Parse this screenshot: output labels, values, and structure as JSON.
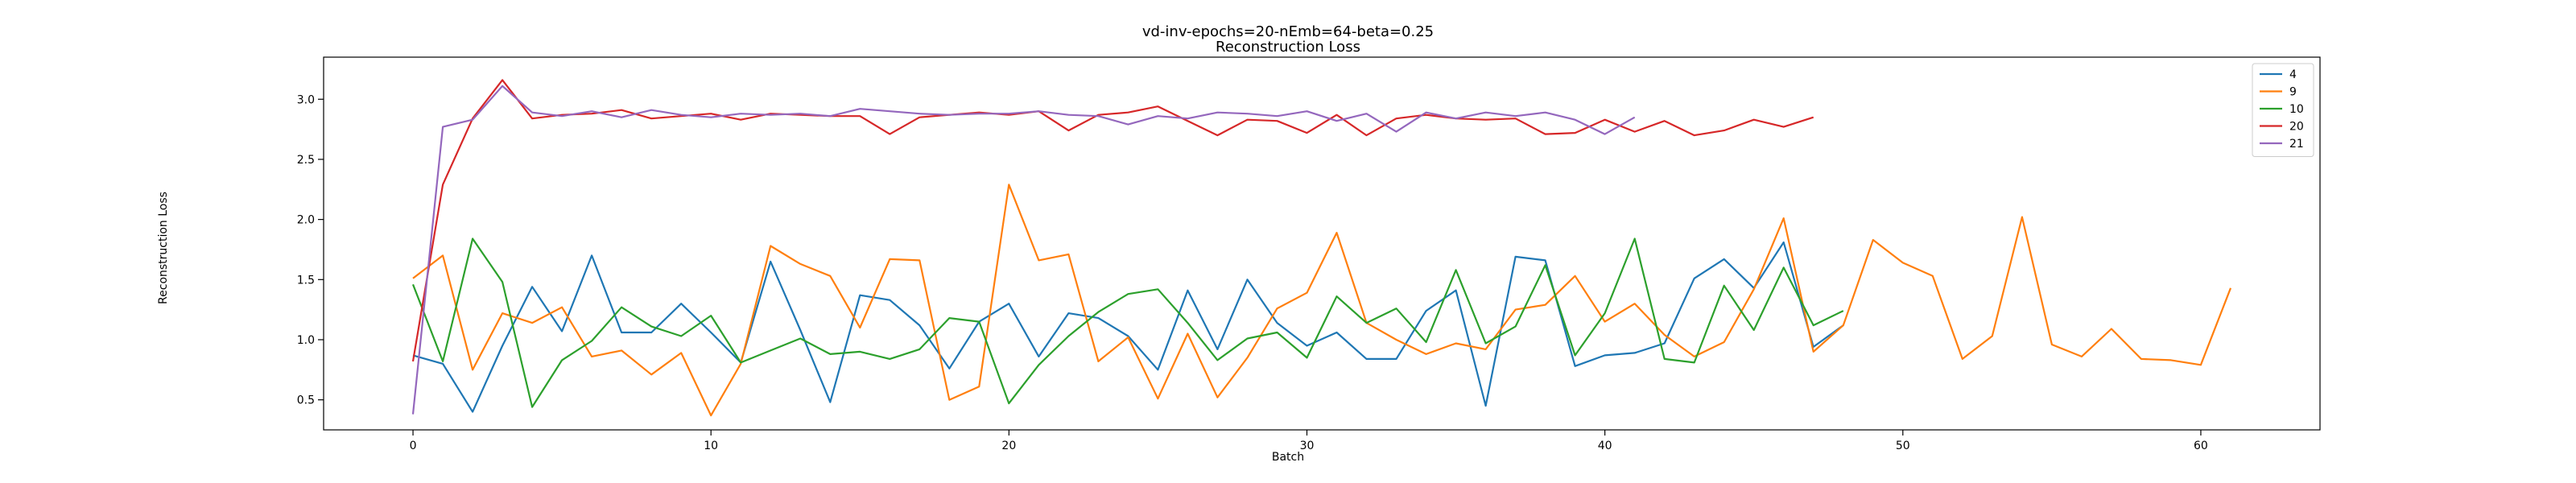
{
  "chart_data": {
    "type": "line",
    "title": "vd-inv-epochs=20-nEmb=64-beta=0.25",
    "subtitle": "Reconstruction Loss",
    "xlabel": "Batch",
    "ylabel": "Reconstruction Loss",
    "xlim": [
      -3,
      64
    ],
    "ylim": [
      0.25,
      3.35
    ],
    "xticks": [
      0,
      10,
      20,
      30,
      40,
      50,
      60
    ],
    "yticks": [
      0.5,
      1.0,
      1.5,
      2.0,
      2.5,
      3.0
    ],
    "xtick_labels": [
      "0",
      "10",
      "20",
      "30",
      "40",
      "50",
      "60"
    ],
    "ytick_labels": [
      "0.5",
      "1.0",
      "1.5",
      "2.0",
      "2.5",
      "3.0"
    ],
    "grid": false,
    "legend_position": "top-right",
    "series": [
      {
        "name": "4",
        "color": "#1f77b4",
        "values": [
          0.87,
          0.8,
          0.4,
          0.95,
          1.44,
          1.07,
          1.7,
          1.06,
          1.06,
          1.3,
          1.06,
          0.81,
          1.65,
          1.08,
          0.48,
          1.37,
          1.33,
          1.12,
          0.76,
          1.15,
          1.3,
          0.86,
          1.22,
          1.18,
          1.03,
          0.75,
          1.41,
          0.92,
          1.5,
          1.14,
          0.95,
          1.06,
          0.84,
          0.84,
          1.24,
          1.41,
          0.45,
          1.69,
          1.66,
          0.78,
          0.87,
          0.89,
          0.97,
          1.51,
          1.67,
          1.43,
          1.81,
          0.94,
          1.12
        ]
      },
      {
        "name": "9",
        "color": "#ff7f0e",
        "values": [
          1.51,
          1.7,
          0.75,
          1.22,
          1.14,
          1.27,
          0.86,
          0.91,
          0.71,
          0.89,
          0.37,
          0.8,
          1.78,
          1.63,
          1.53,
          1.1,
          1.67,
          1.66,
          0.5,
          0.61,
          2.29,
          1.66,
          1.71,
          0.82,
          1.02,
          0.51,
          1.05,
          0.52,
          0.85,
          1.26,
          1.39,
          1.89,
          1.14,
          1.0,
          0.88,
          0.97,
          0.92,
          1.25,
          1.29,
          1.53,
          1.15,
          1.3,
          1.04,
          0.86,
          0.98,
          1.42,
          2.01,
          0.9,
          1.12,
          1.83,
          1.64,
          1.53,
          0.84,
          1.03,
          2.02,
          0.96,
          0.86,
          1.09,
          0.84,
          0.83,
          0.79,
          1.43
        ]
      },
      {
        "name": "10",
        "color": "#2ca02c",
        "values": [
          1.46,
          0.82,
          1.84,
          1.48,
          0.44,
          0.83,
          0.99,
          1.27,
          1.11,
          1.03,
          1.2,
          0.81,
          0.91,
          1.01,
          0.88,
          0.9,
          0.84,
          0.92,
          1.18,
          1.15,
          0.47,
          0.79,
          1.03,
          1.23,
          1.38,
          1.42,
          1.14,
          0.83,
          1.01,
          1.06,
          0.85,
          1.36,
          1.14,
          1.26,
          0.98,
          1.58,
          0.97,
          1.11,
          1.62,
          0.87,
          1.22,
          1.84,
          0.84,
          0.81,
          1.45,
          1.08,
          1.6,
          1.12,
          1.24
        ]
      },
      {
        "name": "20",
        "color": "#d62728",
        "values": [
          0.82,
          2.29,
          2.84,
          3.16,
          2.84,
          2.87,
          2.88,
          2.91,
          2.84,
          2.86,
          2.88,
          2.83,
          2.88,
          2.87,
          2.86,
          2.86,
          2.71,
          2.85,
          2.87,
          2.89,
          2.87,
          2.9,
          2.74,
          2.87,
          2.89,
          2.94,
          2.82,
          2.7,
          2.83,
          2.82,
          2.72,
          2.87,
          2.7,
          2.84,
          2.87,
          2.84,
          2.83,
          2.84,
          2.71,
          2.72,
          2.83,
          2.73,
          2.82,
          2.7,
          2.74,
          2.83,
          2.77,
          2.85
        ]
      },
      {
        "name": "21",
        "color": "#9467bd",
        "values": [
          0.38,
          2.77,
          2.83,
          3.11,
          2.89,
          2.86,
          2.9,
          2.85,
          2.91,
          2.87,
          2.85,
          2.88,
          2.87,
          2.88,
          2.86,
          2.92,
          2.9,
          2.88,
          2.87,
          2.88,
          2.88,
          2.9,
          2.87,
          2.86,
          2.79,
          2.86,
          2.84,
          2.89,
          2.88,
          2.86,
          2.9,
          2.82,
          2.88,
          2.73,
          2.89,
          2.84,
          2.89,
          2.86,
          2.89,
          2.83,
          2.71,
          2.85
        ]
      }
    ]
  }
}
